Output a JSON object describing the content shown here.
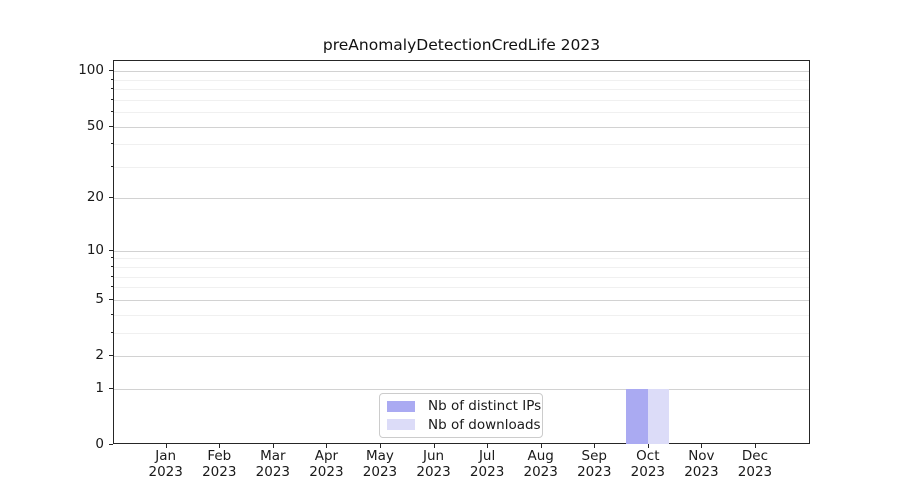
{
  "title": "preAnomalyDetectionCredLife 2023",
  "colors": {
    "distinct_ips_bar": "#aaaaf2",
    "downloads_bar": "#dcdcf8",
    "grid_major": "#d2d2d2",
    "grid_minor": "#f0f0f0",
    "axis": "#262626"
  },
  "legend": {
    "items": [
      {
        "label": "Nb of distinct IPs"
      },
      {
        "label": "Nb of downloads"
      }
    ]
  },
  "chart_data": {
    "type": "bar",
    "title": "preAnomalyDetectionCredLife 2023",
    "categories": [
      "Jan 2023",
      "Feb 2023",
      "Mar 2023",
      "Apr 2023",
      "May 2023",
      "Jun 2023",
      "Jul 2023",
      "Aug 2023",
      "Sep 2023",
      "Oct 2023",
      "Nov 2023",
      "Dec 2023"
    ],
    "series": [
      {
        "name": "Nb of distinct IPs",
        "color": "#aaaaf2",
        "values": [
          0,
          0,
          0,
          0,
          0,
          0,
          0,
          0,
          0,
          1,
          0,
          0
        ]
      },
      {
        "name": "Nb of downloads",
        "color": "#dcdcf8",
        "values": [
          0,
          0,
          0,
          0,
          0,
          0,
          0,
          0,
          0,
          1,
          0,
          0
        ]
      }
    ],
    "xlabel": "",
    "ylabel": "",
    "yscale": "log1p",
    "yticks": [
      0,
      1,
      2,
      5,
      10,
      20,
      50,
      100
    ],
    "yticks_minor": [
      3,
      4,
      6,
      7,
      8,
      9,
      30,
      40,
      60,
      70,
      80,
      90
    ],
    "ylim": [
      0,
      113
    ],
    "grid": "on",
    "legend_position": "lower center",
    "bar_width_units": 0.4
  }
}
